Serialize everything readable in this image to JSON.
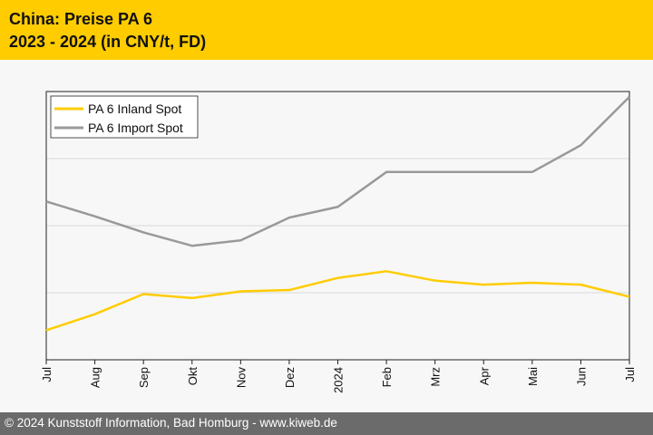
{
  "header": {
    "title": "China: Preise PA 6",
    "subtitle": "2023 - 2024 (in CNY/t, FD)"
  },
  "footer": {
    "copyright": "© 2024 Kunststoff Information, Bad Homburg - www.kiweb.de"
  },
  "colors": {
    "header_bg": "#ffcc00",
    "footer_bg": "#6b6b6b",
    "inland": "#ffcc00",
    "import": "#999999"
  },
  "chart_data": {
    "type": "line",
    "title": "China: Preise PA 6",
    "subtitle": "2023 - 2024 (in CNY/t, FD)",
    "xlabel": "",
    "ylabel": "",
    "categories": [
      "Jul",
      "Aug",
      "Sep",
      "Okt",
      "Nov",
      "Dez",
      "2024",
      "Feb",
      "Mrz",
      "Apr",
      "Mai",
      "Jun",
      "Jul"
    ],
    "ylim": [
      0,
      100
    ],
    "grid": true,
    "legend_position": "top-left",
    "series": [
      {
        "name": "PA 6 Inland Spot",
        "color": "#ffcc00",
        "values": [
          11,
          17,
          24.5,
          23,
          25.5,
          26,
          30.5,
          33,
          29.5,
          28,
          28.7,
          28,
          23.5
        ]
      },
      {
        "name": "PA 6 Import Spot",
        "color": "#999999",
        "values": [
          59,
          53.5,
          47.5,
          42.5,
          44.5,
          53,
          57,
          70,
          70,
          70,
          70,
          80,
          98
        ]
      }
    ]
  }
}
